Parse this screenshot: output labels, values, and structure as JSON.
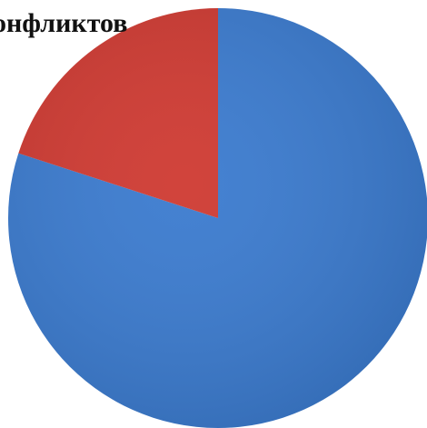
{
  "chart_data": {
    "type": "pie",
    "title": "онфликтов",
    "start_angle_deg": 0,
    "direction": "clockwise",
    "slices": [
      {
        "value": 80,
        "color": "#3b7bcf"
      },
      {
        "value": 20,
        "color": "#cf3a32"
      }
    ]
  }
}
